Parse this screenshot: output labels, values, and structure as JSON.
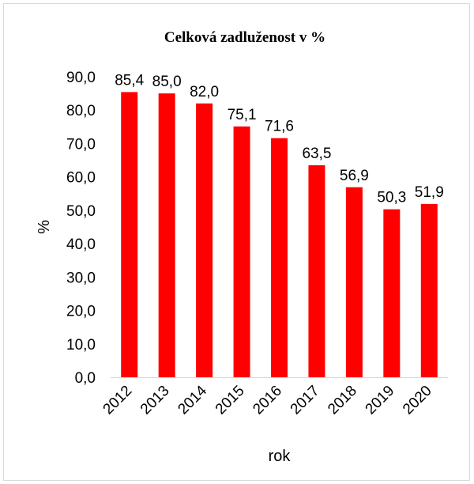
{
  "chart_data": {
    "type": "bar",
    "title": "Celková zadluženost v  %",
    "xlabel": "rok",
    "ylabel": "%",
    "categories": [
      "2012",
      "2013",
      "2014",
      "2015",
      "2016",
      "2017",
      "2018",
      "2019",
      "2020"
    ],
    "values": [
      85.4,
      85.0,
      82.0,
      75.1,
      71.6,
      63.5,
      56.9,
      50.3,
      51.9
    ],
    "data_labels": [
      "85,4",
      "85,0",
      "82,0",
      "75,1",
      "71,6",
      "63,5",
      "56,9",
      "50,3",
      "51,9"
    ],
    "yticks": [
      0,
      10,
      20,
      30,
      40,
      50,
      60,
      70,
      80,
      90
    ],
    "ytick_labels": [
      "0,0",
      "10,0",
      "20,0",
      "30,0",
      "40,0",
      "50,0",
      "60,0",
      "70,0",
      "80,0",
      "90,0"
    ],
    "ylim": [
      0,
      90
    ],
    "bar_color": "#ff0000",
    "grid": false,
    "legend": "none"
  }
}
